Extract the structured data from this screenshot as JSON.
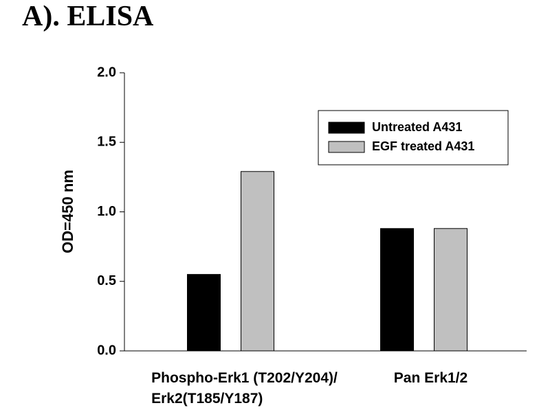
{
  "chart_data": {
    "type": "bar",
    "title": "A). ELISA",
    "y_label": "OD=450 nm",
    "categories": [
      "Phospho-Erk1 (T202/Y204)/\nErk2(T185/Y187)",
      "Pan Erk1/2"
    ],
    "series": [
      {
        "name": "Untreated A431",
        "color": "#000000",
        "values": [
          0.55,
          0.88
        ]
      },
      {
        "name": "EGF treated A431",
        "color": "#c0c0c0",
        "values": [
          1.29,
          0.88
        ]
      }
    ],
    "ylim": [
      0,
      2
    ],
    "yticks": [
      {
        "value": 0,
        "label": "0.0"
      },
      {
        "value": 0.5,
        "label": "0.5"
      },
      {
        "value": 1,
        "label": "1.0"
      },
      {
        "value": 1.5,
        "label": "1.5"
      },
      {
        "value": 2,
        "label": "2.0"
      }
    ],
    "legend": "upper-right"
  }
}
